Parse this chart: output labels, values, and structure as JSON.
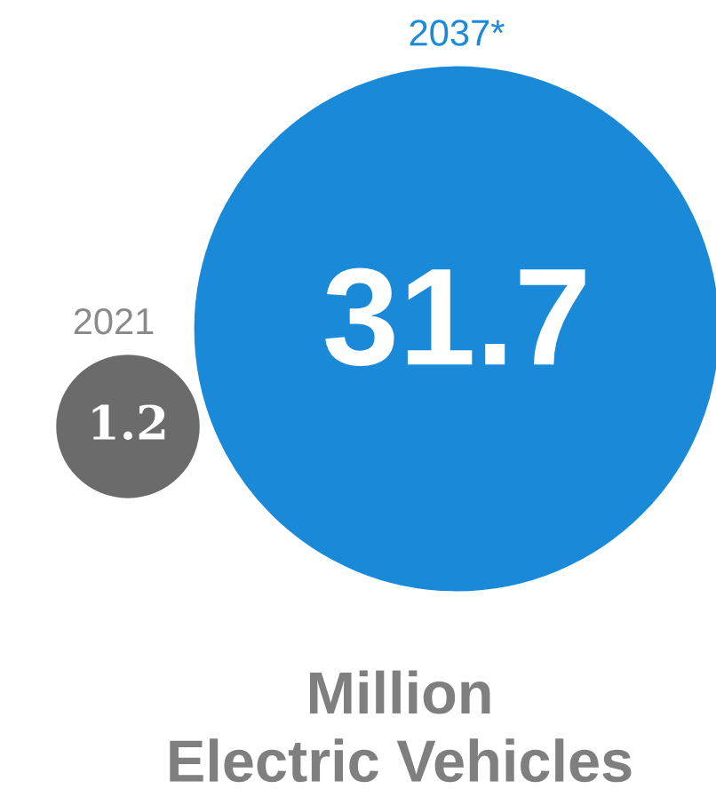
{
  "chart_data": {
    "type": "other",
    "categories": [
      "2021",
      "2037*"
    ],
    "values": [
      1.2,
      31.7
    ],
    "colors": [
      "#6b6b6b",
      "#1a8ad8"
    ],
    "data_labels": true,
    "annotations": [
      "Million\nElectric Vehicles"
    ]
  }
}
